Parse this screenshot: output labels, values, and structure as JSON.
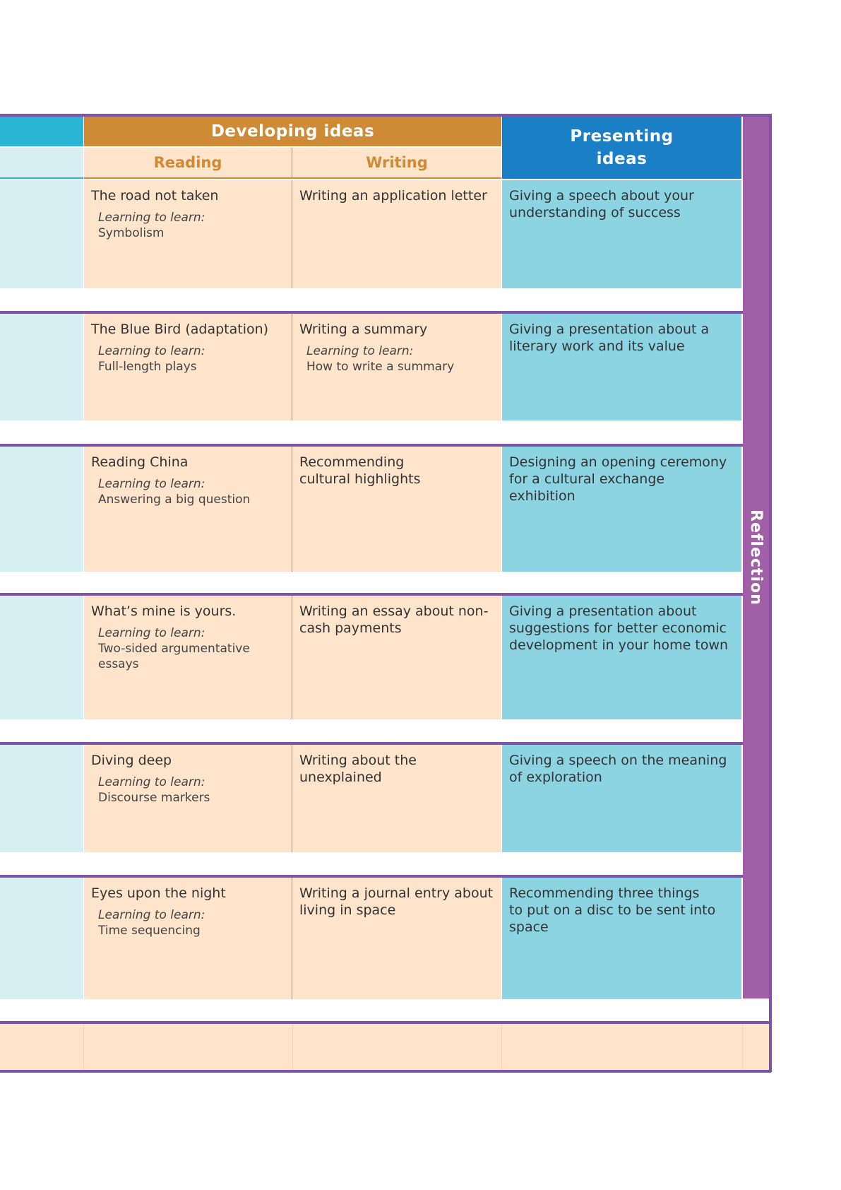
{
  "header": {
    "developing_ideas": "Developing ideas",
    "reading": "Reading",
    "writing": "Writing",
    "presenting_ideas": "Presenting ideas",
    "reflection": "Reflection"
  },
  "rows": [
    {
      "reading_title": "The road not taken",
      "reading_learn_label": "Learning to learn:",
      "reading_learn": "Symbolism",
      "writing_title": "Writing an application letter",
      "presenting": "Giving a speech about your understanding of success"
    },
    {
      "reading_title": "The Blue Bird (adaptation)",
      "reading_learn_label": "Learning to learn:",
      "reading_learn": "Full-length plays",
      "writing_title": "Writing a summary",
      "writing_learn_label": "Learning to learn:",
      "writing_learn": "How to write a summary",
      "presenting": "Giving a presentation about a literary work and its value"
    },
    {
      "reading_title": "Reading China",
      "reading_learn_label": "Learning to learn:",
      "reading_learn": "Answering a big question",
      "writing_title": "Recommending cultural highlights",
      "presenting": "Designing an opening ceremony for a cultural exchange exhibition"
    },
    {
      "reading_title": "What’s mine is yours.",
      "reading_learn_label": "Learning to learn:",
      "reading_learn": "Two-sided argumentative essays",
      "writing_title": "Writing an essay about non-cash payments",
      "presenting": "Giving a presentation about suggestions for better economic development in your home town"
    },
    {
      "reading_title": "Diving deep",
      "reading_learn_label": "Learning to learn:",
      "reading_learn": "Discourse markers",
      "writing_title": "Writing about the unexplained",
      "presenting": "Giving a speech on the meaning of exploration"
    },
    {
      "reading_title": "Eyes upon the night",
      "reading_learn_label": "Learning to learn:",
      "reading_learn": "Time sequencing",
      "writing_title": "Writing a journal entry about living in space",
      "presenting_line1": "Recommending three things",
      "presenting_line2": "to put on a disc to be sent into space"
    }
  ]
}
